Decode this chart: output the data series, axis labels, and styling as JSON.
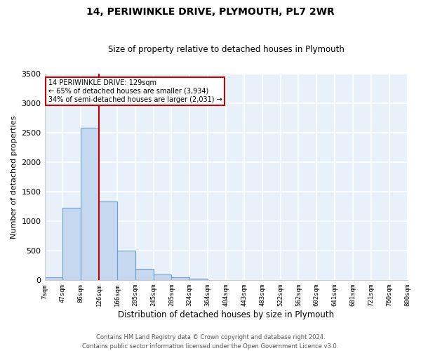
{
  "title": "14, PERIWINKLE DRIVE, PLYMOUTH, PL7 2WR",
  "subtitle": "Size of property relative to detached houses in Plymouth",
  "xlabel": "Distribution of detached houses by size in Plymouth",
  "ylabel": "Number of detached properties",
  "bins": [
    "7sqm",
    "47sqm",
    "86sqm",
    "126sqm",
    "166sqm",
    "205sqm",
    "245sqm",
    "285sqm",
    "324sqm",
    "364sqm",
    "404sqm",
    "443sqm",
    "483sqm",
    "522sqm",
    "562sqm",
    "602sqm",
    "641sqm",
    "681sqm",
    "721sqm",
    "760sqm",
    "800sqm"
  ],
  "bar_values": [
    55,
    1230,
    2580,
    1330,
    500,
    195,
    100,
    50,
    25,
    5,
    0,
    0,
    0,
    0,
    0,
    0,
    0,
    0,
    0,
    0
  ],
  "bar_color": "#c5d8f0",
  "bar_edge_color": "#6a9fd8",
  "line_color": "#cc0000",
  "annotation_text": "14 PERIWINKLE DRIVE: 129sqm\n← 65% of detached houses are smaller (3,934)\n34% of semi-detached houses are larger (2,031) →",
  "annotation_box_color": "#ffffff",
  "annotation_box_edge": "#cc0000",
  "ylim": [
    0,
    3500
  ],
  "yticks": [
    0,
    500,
    1000,
    1500,
    2000,
    2500,
    3000,
    3500
  ],
  "bg_color": "#e8f0fa",
  "grid_color": "#ffffff",
  "footer1": "Contains HM Land Registry data © Crown copyright and database right 2024.",
  "footer2": "Contains public sector information licensed under the Open Government Licence v3.0."
}
